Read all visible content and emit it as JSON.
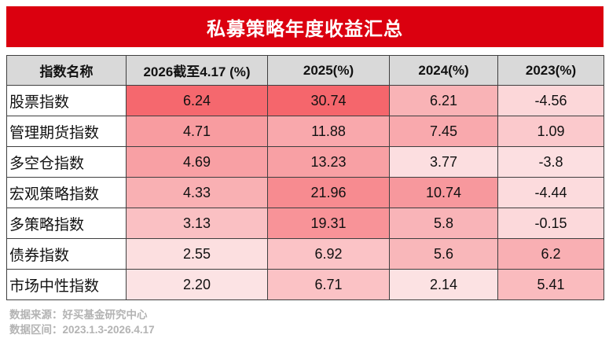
{
  "title": "私募策略年度收益汇总",
  "table": {
    "columns": [
      "指数名称",
      "2026截至4.17 (%)",
      "2025(%)",
      "2024(%)",
      "2023(%)"
    ],
    "rows": [
      {
        "name": "股票指数",
        "values": [
          "6.24",
          "30.74",
          "6.21",
          "-4.56"
        ],
        "colors": [
          "#F5686E",
          "#F5666C",
          "#F9B3B6",
          "#FCD7D9"
        ]
      },
      {
        "name": "管理期货指数",
        "values": [
          "4.71",
          "11.88",
          "7.45",
          "1.09"
        ],
        "colors": [
          "#F89CA0",
          "#F9A8AC",
          "#F9A9AD",
          "#FBC9CC"
        ]
      },
      {
        "name": "多空仓指数",
        "values": [
          "4.69",
          "13.23",
          "3.77",
          "-3.8"
        ],
        "colors": [
          "#F8A0A4",
          "#F8A0A4",
          "#FCDEE0",
          "#FCDFE1"
        ]
      },
      {
        "name": "宏观策略指数",
        "values": [
          "4.33",
          "21.96",
          "10.74",
          "-4.44"
        ],
        "colors": [
          "#F9B0B3",
          "#F78B90",
          "#F7989D",
          "#FCDBDD"
        ]
      },
      {
        "name": "多策略指数",
        "values": [
          "3.13",
          "19.31",
          "5.8",
          "-0.15"
        ],
        "colors": [
          "#FAC0C3",
          "#F89398",
          "#F9B4B8",
          "#FCD9DB"
        ]
      },
      {
        "name": "债券指数",
        "values": [
          "2.55",
          "6.92",
          "5.6",
          "6.2"
        ],
        "colors": [
          "#FCDFE0",
          "#FBC3C6",
          "#F9B7BA",
          "#F9AFB3"
        ]
      },
      {
        "name": "市场中性指数",
        "values": [
          "2.20",
          "6.71",
          "2.14",
          "5.41"
        ],
        "colors": [
          "#FCE3E4",
          "#FBC2C5",
          "#FCE2E3",
          "#FABBBE"
        ]
      }
    ]
  },
  "footer": {
    "source": "数据来源：好买基金研究中心",
    "range": "数据区间：2023.1.3-2026.4.17"
  },
  "colors": {
    "banner_red": "#DB000F",
    "header_bg": "#D9D9D9",
    "border": "#3F3F3F",
    "heat_max": "#F5666C",
    "heat_min": "#FCE3E4",
    "footer_text": "#B3B3B3"
  },
  "chart_data": {
    "type": "heatmap",
    "title": "私募策略年度收益汇总",
    "categories": [
      "股票指数",
      "管理期货指数",
      "多空仓指数",
      "宏观策略指数",
      "多策略指数",
      "债券指数",
      "市场中性指数"
    ],
    "series": [
      {
        "name": "2026截至4.17 (%)",
        "values": [
          6.24,
          4.71,
          4.69,
          4.33,
          3.13,
          2.55,
          2.2
        ]
      },
      {
        "name": "2025(%)",
        "values": [
          30.74,
          11.88,
          13.23,
          21.96,
          19.31,
          6.92,
          6.71
        ]
      },
      {
        "name": "2024(%)",
        "values": [
          6.21,
          7.45,
          3.77,
          10.74,
          5.8,
          5.6,
          2.14
        ]
      },
      {
        "name": "2023(%)",
        "values": [
          -4.56,
          1.09,
          -3.8,
          -4.44,
          -0.15,
          6.2,
          5.41
        ]
      }
    ],
    "legend_position": "none",
    "notes": "cell shading: deeper red = higher return within each year column",
    "source_note": "数据来源：好买基金研究中心",
    "period_note": "数据区间：2023.1.3-2026.4.17"
  }
}
